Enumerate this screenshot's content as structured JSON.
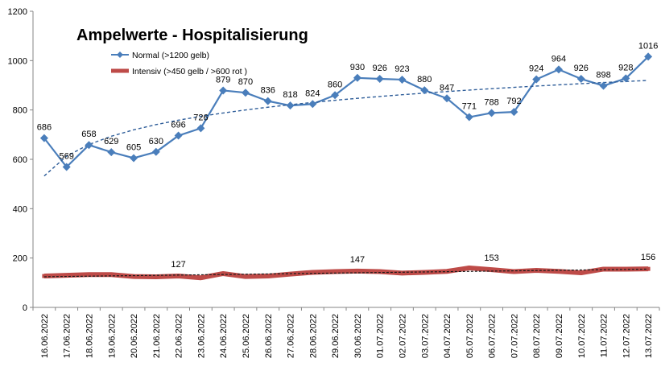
{
  "chart_data": {
    "type": "line",
    "title": "Ampelwerte - Hospitalisierung",
    "xlabel": "",
    "ylabel": "",
    "ylim": [
      0,
      1200
    ],
    "yticks": [
      0,
      200,
      400,
      600,
      800,
      1000,
      1200
    ],
    "grid": false,
    "legend_position": "top-left",
    "categories": [
      "16.06.2022",
      "17.06.2022",
      "18.06.2022",
      "19.06.2022",
      "20.06.2022",
      "21.06.2022",
      "22.06.2022",
      "23.06.2022",
      "24.06.2022",
      "25.06.2022",
      "26.06.2022",
      "27.06.2022",
      "28.06.2022",
      "29.06.2022",
      "30.06.2022",
      "01.07.2022",
      "02.07.2022",
      "03.07.2022",
      "04.07.2022",
      "05.07.2022",
      "06.07.2022",
      "07.07.2022",
      "08.07.2022",
      "09.07.2022",
      "10.07.2022",
      "11.07.2022",
      "12.07.2022",
      "13.07.2022"
    ],
    "series": [
      {
        "name": "Normal (>1200 gelb)",
        "color": "#4A7EBB",
        "marker": "diamond",
        "trendline": "logarithmic",
        "values": [
          686,
          569,
          658,
          629,
          605,
          630,
          696,
          726,
          879,
          870,
          836,
          818,
          824,
          860,
          930,
          926,
          923,
          880,
          847,
          771,
          788,
          792,
          924,
          964,
          926,
          898,
          928,
          1016
        ],
        "data_labels": [
          "686",
          "569",
          "658",
          "629",
          "605",
          "630",
          "696",
          "726",
          "879",
          "870",
          "836",
          "818",
          "824",
          "860",
          "930",
          "926",
          "923",
          "880",
          "847",
          "771",
          "788",
          "792",
          "924",
          "964",
          "926",
          "898",
          "928",
          "1016"
        ]
      },
      {
        "name": "Intensiv (>450 gelb / >600 rot )",
        "color": "#BE4B48",
        "marker": "square",
        "trendline": "linear",
        "values": [
          127,
          130,
          133,
          133,
          125,
          124,
          127,
          120,
          137,
          125,
          127,
          135,
          142,
          145,
          147,
          145,
          139,
          142,
          146,
          160,
          153,
          145,
          150,
          146,
          140,
          155,
          155,
          156
        ],
        "data_labels": [
          null,
          null,
          null,
          null,
          null,
          null,
          "127",
          null,
          null,
          null,
          null,
          null,
          null,
          null,
          "147",
          null,
          null,
          null,
          null,
          null,
          "153",
          null,
          null,
          null,
          null,
          null,
          null,
          "156"
        ]
      }
    ]
  }
}
